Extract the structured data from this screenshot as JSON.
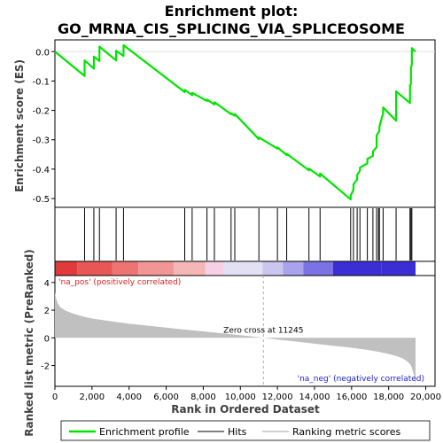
{
  "chart_data": [
    {
      "type": "line",
      "title_line1": "Enrichment plot:",
      "title_line2": "GO_MRNA_CIS_SPLICING_VIA_SPLICEOSOME",
      "ylabel": "Enrichment score (ES)",
      "ylim": [
        -0.53,
        0.04
      ],
      "yticks": [
        0.0,
        -0.1,
        -0.2,
        -0.3,
        -0.4,
        -0.5
      ],
      "ytick_labels": [
        "0.0",
        "-0.1",
        "-0.2",
        "-0.3",
        "-0.4",
        "-0.5"
      ],
      "line_color": "#00e400",
      "series": [
        {
          "name": "Enrichment profile",
          "x": [
            0,
            1600,
            1601,
            2100,
            2101,
            2400,
            2401,
            3300,
            3301,
            3700,
            3701,
            7000,
            7001,
            7400,
            7401,
            8200,
            8201,
            8600,
            8601,
            9500,
            9501,
            9700,
            9701,
            11000,
            11001,
            12000,
            12001,
            12500,
            12501,
            13700,
            13701,
            14300,
            14301,
            15950,
            15951,
            16100,
            16101,
            16300,
            16301,
            16450,
            16451,
            16850,
            16851,
            17150,
            17151,
            17350,
            17351,
            17500,
            17501,
            17700,
            17701,
            18400,
            18401,
            19150,
            19151,
            19200,
            19201,
            19250,
            19251,
            19450
          ],
          "y": [
            0.0,
            -0.083,
            -0.03,
            -0.058,
            -0.017,
            -0.032,
            0.017,
            -0.03,
            0.003,
            -0.015,
            0.022,
            -0.138,
            -0.13,
            -0.148,
            -0.14,
            -0.168,
            -0.163,
            -0.18,
            -0.172,
            -0.213,
            -0.21,
            -0.218,
            -0.212,
            -0.298,
            -0.292,
            -0.33,
            -0.326,
            -0.352,
            -0.348,
            -0.404,
            -0.398,
            -0.425,
            -0.415,
            -0.503,
            -0.49,
            -0.47,
            -0.452,
            -0.435,
            -0.42,
            -0.405,
            -0.395,
            -0.38,
            -0.365,
            -0.355,
            -0.34,
            -0.325,
            -0.285,
            -0.27,
            -0.255,
            -0.21,
            -0.19,
            -0.235,
            -0.135,
            -0.175,
            -0.115,
            -0.11,
            -0.055,
            -0.045,
            0.012,
            0.0
          ]
        }
      ]
    },
    {
      "type": "hits",
      "series_name": "Hits",
      "positions": [
        1600,
        2100,
        2400,
        3300,
        3700,
        7000,
        7400,
        8200,
        8600,
        9500,
        9700,
        11000,
        12000,
        12500,
        13700,
        14300,
        15950,
        16100,
        16300,
        16450,
        16850,
        17150,
        17350,
        17450,
        17500,
        17700,
        18400,
        19150,
        19200,
        19250
      ]
    },
    {
      "type": "heatmap",
      "colors": [
        "#e03a3a",
        "#e85656",
        "#ee7474",
        "#f29595",
        "#f5b6b6",
        "#f7d0e5",
        "#e4e0f3",
        "#cbc6f0",
        "#a9a2ec",
        "#7b72e4",
        "#3b2ed4"
      ],
      "segment_ends": [
        1200,
        3100,
        4500,
        6400,
        8100,
        9100,
        11200,
        12300,
        13400,
        15000,
        17600,
        19450
      ]
    },
    {
      "type": "area",
      "ylabel": "Ranked list metric (PreRanked)",
      "xlabel": "Rank in Ordered Dataset",
      "xlim": [
        0,
        20500
      ],
      "ylim": [
        -3.5,
        4.5
      ],
      "xticks": [
        0,
        2000,
        4000,
        6000,
        8000,
        10000,
        12000,
        14000,
        16000,
        18000,
        20000
      ],
      "xtick_labels": [
        "0",
        "2,000",
        "4,000",
        "6,000",
        "8,000",
        "10,000",
        "12,000",
        "14,000",
        "16,000",
        "18,000",
        "20,000"
      ],
      "yticks": [
        4,
        2,
        0,
        -2
      ],
      "ytick_labels": [
        "4",
        "2",
        "0",
        "-2"
      ],
      "x": [
        0,
        50,
        150,
        300,
        600,
        1000,
        1500,
        2000,
        3000,
        4000,
        5000,
        6000,
        7000,
        8000,
        9000,
        10000,
        11245,
        12000,
        13000,
        14000,
        15000,
        16000,
        17000,
        17500,
        18000,
        18500,
        18800,
        19000,
        19150,
        19250,
        19350,
        19400,
        19450
      ],
      "y": [
        3.3,
        2.9,
        2.5,
        2.2,
        1.95,
        1.75,
        1.55,
        1.4,
        1.2,
        1.02,
        0.88,
        0.74,
        0.6,
        0.47,
        0.33,
        0.2,
        0.0,
        -0.12,
        -0.27,
        -0.42,
        -0.57,
        -0.72,
        -0.9,
        -1.02,
        -1.16,
        -1.35,
        -1.52,
        -1.7,
        -1.9,
        -2.15,
        -2.6,
        -3.0,
        -3.4
      ],
      "fill_color": "#c0c0c0",
      "zero_cross_label": "Zero cross at 11245",
      "zero_cross_x": 11245,
      "pos_label": "'na_pos' (positively correlated)",
      "neg_label": "'na_neg' (negatively correlated)",
      "pos_color": "#e02020",
      "neg_color": "#2020d0"
    }
  ],
  "legend": {
    "items": [
      {
        "label": "Enrichment profile",
        "color": "#00e400"
      },
      {
        "label": "Hits",
        "color": "#000000"
      },
      {
        "label": "Ranking metric scores",
        "color": "#c0c0c0"
      }
    ]
  }
}
